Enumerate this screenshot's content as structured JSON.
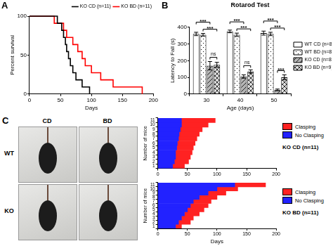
{
  "chart_data": [
    {
      "panel": "A",
      "type": "line",
      "x_label": "Days",
      "y_label": "Percent survival",
      "xlim": [
        0,
        200
      ],
      "xticks": [
        0,
        50,
        100,
        150,
        200
      ],
      "ylim": [
        0,
        100
      ],
      "yticks": [
        0,
        50,
        100
      ],
      "grid": false,
      "legend": "top right",
      "series": [
        {
          "name": "KO CD (n=11)",
          "color": "#000000",
          "line_style": "step",
          "x": [
            0,
            45,
            52,
            55,
            58,
            60,
            63,
            66,
            70,
            75,
            85,
            97
          ],
          "values": [
            100,
            90.9,
            81.8,
            72.7,
            63.6,
            54.5,
            45.5,
            36.4,
            27.3,
            18.2,
            9.1,
            0
          ]
        },
        {
          "name": "KO BD (n=11)",
          "color": "#ff0000",
          "line_style": "step",
          "x": [
            0,
            40,
            55,
            60,
            70,
            78,
            85,
            90,
            100,
            115,
            135,
            182
          ],
          "values": [
            100,
            90.9,
            81.8,
            72.7,
            63.6,
            54.5,
            45.5,
            36.4,
            27.3,
            18.2,
            9.1,
            0
          ]
        }
      ]
    },
    {
      "panel": "B",
      "type": "bar",
      "title": "Rotarod Test",
      "x_label": "Age (days)",
      "y_label": "Latency to Fall (s)",
      "categories": [
        "30",
        "40",
        "50"
      ],
      "ylim": [
        0,
        400
      ],
      "yticks": [
        0,
        100,
        200,
        300,
        400
      ],
      "grid": false,
      "legend": "right",
      "series": [
        {
          "name": "WT CD (n=8)",
          "color": "#ffffff",
          "values": [
            360,
            375,
            365
          ],
          "errors": [
            10,
            8,
            12
          ]
        },
        {
          "name": "WT BD (n=8)",
          "color": "#ffffff",
          "values": [
            355,
            355,
            360
          ],
          "errors": [
            8,
            10,
            10
          ]
        },
        {
          "name": "KO CD (n=8)",
          "color": "#b4b4b4",
          "values": [
            170,
            105,
            25
          ],
          "errors": [
            25,
            10,
            5
          ]
        },
        {
          "name": "KO BD (n=9)",
          "color": "#e0e0e0",
          "values": [
            175,
            135,
            100
          ],
          "errors": [
            15,
            10,
            15
          ]
        }
      ],
      "annotations": [
        {
          "category": "30",
          "between": [
            2,
            3
          ],
          "text": "ns"
        },
        {
          "category": "30",
          "between": [
            1,
            3
          ],
          "text": "***"
        },
        {
          "category": "30",
          "between": [
            0,
            2
          ],
          "text": "***"
        },
        {
          "category": "40",
          "between": [
            2,
            3
          ],
          "text": "ns"
        },
        {
          "category": "40",
          "between": [
            1,
            3
          ],
          "text": "***"
        },
        {
          "category": "40",
          "between": [
            0,
            2
          ],
          "text": "***"
        },
        {
          "category": "50",
          "between": [
            2,
            3
          ],
          "text": "***"
        },
        {
          "category": "50",
          "between": [
            1,
            3
          ],
          "text": "***"
        },
        {
          "category": "50",
          "between": [
            0,
            2
          ],
          "text": "***"
        }
      ]
    },
    {
      "type": "bar",
      "orientation": "horizontal",
      "stacked": true,
      "title": "KO CD (n=11)",
      "y_label": "Number of mice",
      "categories": [
        "1",
        "2",
        "3",
        "4",
        "5",
        "6",
        "7",
        "8",
        "9",
        "10",
        "11"
      ],
      "xlim": [
        0,
        200
      ],
      "xticks": [
        0,
        50,
        100,
        150,
        200
      ],
      "grid": false,
      "legend": "right",
      "series": [
        {
          "name": "No Clasping",
          "color": "#2222ff",
          "values": [
            25,
            28,
            30,
            30,
            32,
            33,
            35,
            36,
            38,
            40,
            40
          ]
        },
        {
          "name": "Clasping",
          "color": "#ff2222",
          "values": [
            20,
            24,
            25,
            28,
            28,
            30,
            31,
            34,
            37,
            45,
            57
          ]
        }
      ]
    },
    {
      "type": "bar",
      "orientation": "horizontal",
      "stacked": true,
      "title": "KO BD (n=11)",
      "x_label": "Days",
      "y_label": "Number of mice",
      "categories": [
        "1",
        "2",
        "3",
        "4",
        "5",
        "6",
        "7",
        "8",
        "9",
        "10",
        "11"
      ],
      "xlim": [
        0,
        200
      ],
      "xticks": [
        0,
        50,
        100,
        150,
        200
      ],
      "grid": false,
      "legend": "right",
      "series": [
        {
          "name": "No Clasping",
          "color": "#2222ff",
          "values": [
            30,
            35,
            40,
            45,
            50,
            55,
            60,
            70,
            85,
            100,
            130
          ]
        },
        {
          "name": "Clasping",
          "color": "#ff2222",
          "values": [
            10,
            20,
            20,
            25,
            28,
            30,
            30,
            30,
            30,
            35,
            52
          ]
        }
      ]
    }
  ],
  "photo_panel": {
    "panel": "C",
    "columns": [
      "CD",
      "BD"
    ],
    "rows": [
      "WT",
      "KO"
    ]
  }
}
